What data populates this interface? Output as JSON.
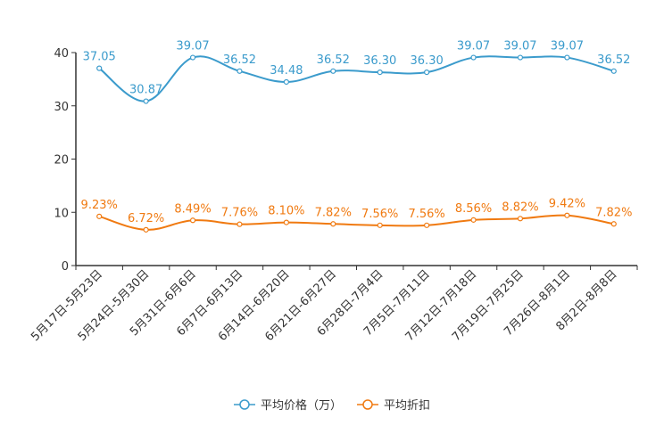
{
  "chart_data": {
    "type": "line",
    "title": "",
    "xlabel": "",
    "ylabel": "",
    "ylim": [
      0,
      40
    ],
    "yticks": [
      0,
      10,
      20,
      30,
      40
    ],
    "grid": false,
    "legend_position": "bottom-center",
    "categories": [
      "5月17日-5月23日",
      "5月24日-5月30日",
      "5月31日-6月6日",
      "6月7日-6月13日",
      "6月14日-6月20日",
      "6月21日-6月27日",
      "6月28日-7月4日",
      "7月5日-7月11日",
      "7月12日-7月18日",
      "7月19日-7月25日",
      "7月26日-8月1日",
      "8月2日-8月8日"
    ],
    "series": [
      {
        "name": "平均价格（万）",
        "color": "#3b9bcc",
        "values": [
          37.05,
          30.87,
          39.07,
          36.52,
          34.48,
          36.52,
          36.3,
          36.3,
          39.07,
          39.07,
          39.07,
          36.52
        ],
        "labels": [
          "37.05",
          "30.87",
          "39.07",
          "36.52",
          "34.48",
          "36.52",
          "36.30",
          "36.30",
          "39.07",
          "39.07",
          "39.07",
          "36.52"
        ]
      },
      {
        "name": "平均折扣",
        "color": "#f07a11",
        "values": [
          9.23,
          6.72,
          8.49,
          7.76,
          8.1,
          7.82,
          7.56,
          7.56,
          8.56,
          8.82,
          9.42,
          7.82
        ],
        "labels": [
          "9.23%",
          "6.72%",
          "8.49%",
          "7.76%",
          "8.10%",
          "7.82%",
          "7.56%",
          "7.56%",
          "8.56%",
          "8.82%",
          "9.42%",
          "7.82%"
        ]
      }
    ]
  }
}
